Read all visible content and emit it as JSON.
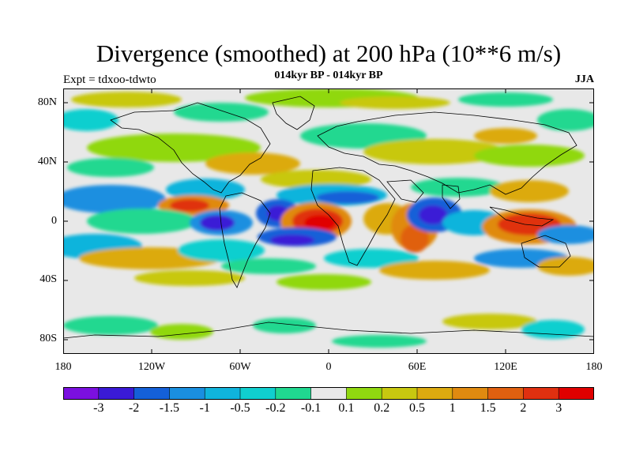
{
  "title": "Divergence (smoothed) at 200 hPa (10**6 m/s)",
  "subtitle_left": "Expt = tdxoo-tdwto",
  "subtitle_center": "014kyr BP - 014kyr BP",
  "subtitle_right": "JJA",
  "lat_labels": [
    "80N",
    "40N",
    "0",
    "40S",
    "80S"
  ],
  "lon_labels": [
    "180",
    "120W",
    "60W",
    "0",
    "60E",
    "120E",
    "180"
  ],
  "colorbar": {
    "labels": [
      "-3",
      "-2",
      "-1.5",
      "-1",
      "-0.5",
      "-0.2",
      "-0.1",
      "0.1",
      "0.2",
      "0.5",
      "1",
      "1.5",
      "2",
      "3"
    ],
    "colors": [
      "#7b10e0",
      "#3a1ad6",
      "#1460d8",
      "#1a8fe0",
      "#10b4dc",
      "#10cfcf",
      "#20d890",
      "#e8e8e8",
      "#90d810",
      "#c8c810",
      "#dcaa10",
      "#e08a10",
      "#e06010",
      "#e03010",
      "#e00000"
    ]
  },
  "map_colors": {
    "background": "#e8e8e8",
    "land": "none",
    "coast": "#000000"
  }
}
